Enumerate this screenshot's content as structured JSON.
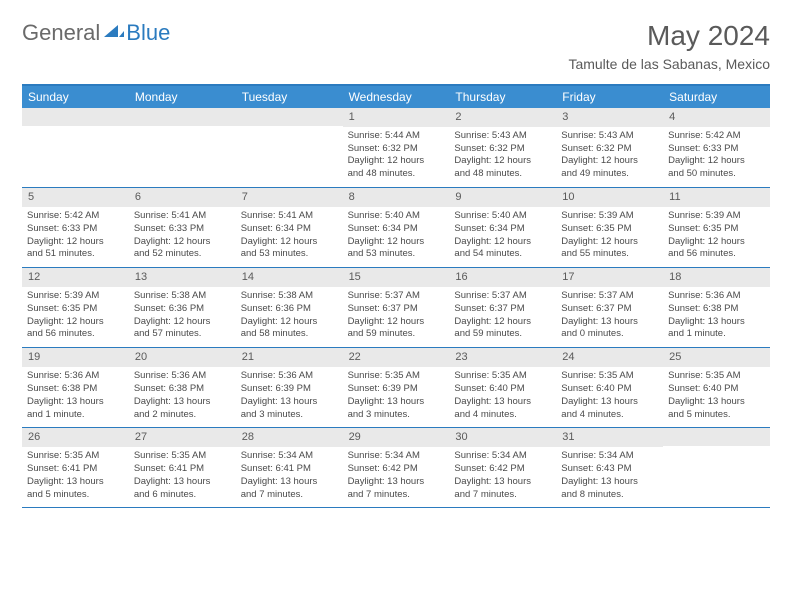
{
  "logo": {
    "general": "General",
    "blue": "Blue"
  },
  "header": {
    "month": "May 2024",
    "location": "Tamulte de las Sabanas, Mexico"
  },
  "dayHeaders": [
    "Sunday",
    "Monday",
    "Tuesday",
    "Wednesday",
    "Thursday",
    "Friday",
    "Saturday"
  ],
  "colors": {
    "headerBg": "#3a8dd0",
    "borderBlue": "#2b7bbf",
    "dayNumBg": "#e9e9e9",
    "textGray": "#5a5a5a",
    "bodyText": "#4a4a4a"
  },
  "weeks": [
    [
      {
        "num": "",
        "empty": true
      },
      {
        "num": "",
        "empty": true
      },
      {
        "num": "",
        "empty": true
      },
      {
        "num": "1",
        "sunrise": "Sunrise: 5:44 AM",
        "sunset": "Sunset: 6:32 PM",
        "day1": "Daylight: 12 hours",
        "day2": "and 48 minutes."
      },
      {
        "num": "2",
        "sunrise": "Sunrise: 5:43 AM",
        "sunset": "Sunset: 6:32 PM",
        "day1": "Daylight: 12 hours",
        "day2": "and 48 minutes."
      },
      {
        "num": "3",
        "sunrise": "Sunrise: 5:43 AM",
        "sunset": "Sunset: 6:32 PM",
        "day1": "Daylight: 12 hours",
        "day2": "and 49 minutes."
      },
      {
        "num": "4",
        "sunrise": "Sunrise: 5:42 AM",
        "sunset": "Sunset: 6:33 PM",
        "day1": "Daylight: 12 hours",
        "day2": "and 50 minutes."
      }
    ],
    [
      {
        "num": "5",
        "sunrise": "Sunrise: 5:42 AM",
        "sunset": "Sunset: 6:33 PM",
        "day1": "Daylight: 12 hours",
        "day2": "and 51 minutes."
      },
      {
        "num": "6",
        "sunrise": "Sunrise: 5:41 AM",
        "sunset": "Sunset: 6:33 PM",
        "day1": "Daylight: 12 hours",
        "day2": "and 52 minutes."
      },
      {
        "num": "7",
        "sunrise": "Sunrise: 5:41 AM",
        "sunset": "Sunset: 6:34 PM",
        "day1": "Daylight: 12 hours",
        "day2": "and 53 minutes."
      },
      {
        "num": "8",
        "sunrise": "Sunrise: 5:40 AM",
        "sunset": "Sunset: 6:34 PM",
        "day1": "Daylight: 12 hours",
        "day2": "and 53 minutes."
      },
      {
        "num": "9",
        "sunrise": "Sunrise: 5:40 AM",
        "sunset": "Sunset: 6:34 PM",
        "day1": "Daylight: 12 hours",
        "day2": "and 54 minutes."
      },
      {
        "num": "10",
        "sunrise": "Sunrise: 5:39 AM",
        "sunset": "Sunset: 6:35 PM",
        "day1": "Daylight: 12 hours",
        "day2": "and 55 minutes."
      },
      {
        "num": "11",
        "sunrise": "Sunrise: 5:39 AM",
        "sunset": "Sunset: 6:35 PM",
        "day1": "Daylight: 12 hours",
        "day2": "and 56 minutes."
      }
    ],
    [
      {
        "num": "12",
        "sunrise": "Sunrise: 5:39 AM",
        "sunset": "Sunset: 6:35 PM",
        "day1": "Daylight: 12 hours",
        "day2": "and 56 minutes."
      },
      {
        "num": "13",
        "sunrise": "Sunrise: 5:38 AM",
        "sunset": "Sunset: 6:36 PM",
        "day1": "Daylight: 12 hours",
        "day2": "and 57 minutes."
      },
      {
        "num": "14",
        "sunrise": "Sunrise: 5:38 AM",
        "sunset": "Sunset: 6:36 PM",
        "day1": "Daylight: 12 hours",
        "day2": "and 58 minutes."
      },
      {
        "num": "15",
        "sunrise": "Sunrise: 5:37 AM",
        "sunset": "Sunset: 6:37 PM",
        "day1": "Daylight: 12 hours",
        "day2": "and 59 minutes."
      },
      {
        "num": "16",
        "sunrise": "Sunrise: 5:37 AM",
        "sunset": "Sunset: 6:37 PM",
        "day1": "Daylight: 12 hours",
        "day2": "and 59 minutes."
      },
      {
        "num": "17",
        "sunrise": "Sunrise: 5:37 AM",
        "sunset": "Sunset: 6:37 PM",
        "day1": "Daylight: 13 hours",
        "day2": "and 0 minutes."
      },
      {
        "num": "18",
        "sunrise": "Sunrise: 5:36 AM",
        "sunset": "Sunset: 6:38 PM",
        "day1": "Daylight: 13 hours",
        "day2": "and 1 minute."
      }
    ],
    [
      {
        "num": "19",
        "sunrise": "Sunrise: 5:36 AM",
        "sunset": "Sunset: 6:38 PM",
        "day1": "Daylight: 13 hours",
        "day2": "and 1 minute."
      },
      {
        "num": "20",
        "sunrise": "Sunrise: 5:36 AM",
        "sunset": "Sunset: 6:38 PM",
        "day1": "Daylight: 13 hours",
        "day2": "and 2 minutes."
      },
      {
        "num": "21",
        "sunrise": "Sunrise: 5:36 AM",
        "sunset": "Sunset: 6:39 PM",
        "day1": "Daylight: 13 hours",
        "day2": "and 3 minutes."
      },
      {
        "num": "22",
        "sunrise": "Sunrise: 5:35 AM",
        "sunset": "Sunset: 6:39 PM",
        "day1": "Daylight: 13 hours",
        "day2": "and 3 minutes."
      },
      {
        "num": "23",
        "sunrise": "Sunrise: 5:35 AM",
        "sunset": "Sunset: 6:40 PM",
        "day1": "Daylight: 13 hours",
        "day2": "and 4 minutes."
      },
      {
        "num": "24",
        "sunrise": "Sunrise: 5:35 AM",
        "sunset": "Sunset: 6:40 PM",
        "day1": "Daylight: 13 hours",
        "day2": "and 4 minutes."
      },
      {
        "num": "25",
        "sunrise": "Sunrise: 5:35 AM",
        "sunset": "Sunset: 6:40 PM",
        "day1": "Daylight: 13 hours",
        "day2": "and 5 minutes."
      }
    ],
    [
      {
        "num": "26",
        "sunrise": "Sunrise: 5:35 AM",
        "sunset": "Sunset: 6:41 PM",
        "day1": "Daylight: 13 hours",
        "day2": "and 5 minutes."
      },
      {
        "num": "27",
        "sunrise": "Sunrise: 5:35 AM",
        "sunset": "Sunset: 6:41 PM",
        "day1": "Daylight: 13 hours",
        "day2": "and 6 minutes."
      },
      {
        "num": "28",
        "sunrise": "Sunrise: 5:34 AM",
        "sunset": "Sunset: 6:41 PM",
        "day1": "Daylight: 13 hours",
        "day2": "and 7 minutes."
      },
      {
        "num": "29",
        "sunrise": "Sunrise: 5:34 AM",
        "sunset": "Sunset: 6:42 PM",
        "day1": "Daylight: 13 hours",
        "day2": "and 7 minutes."
      },
      {
        "num": "30",
        "sunrise": "Sunrise: 5:34 AM",
        "sunset": "Sunset: 6:42 PM",
        "day1": "Daylight: 13 hours",
        "day2": "and 7 minutes."
      },
      {
        "num": "31",
        "sunrise": "Sunrise: 5:34 AM",
        "sunset": "Sunset: 6:43 PM",
        "day1": "Daylight: 13 hours",
        "day2": "and 8 minutes."
      },
      {
        "num": "",
        "empty": true
      }
    ]
  ]
}
